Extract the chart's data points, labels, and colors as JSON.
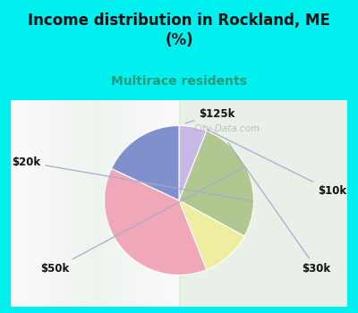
{
  "title": "Income distribution in Rockland, ME\n(%)",
  "subtitle": "Multirace residents",
  "slices": [
    {
      "label": "$125k",
      "value": 6,
      "color": "#c8b8e8"
    },
    {
      "label": "$10k",
      "value": 27,
      "color": "#b0c890"
    },
    {
      "label": "$30k",
      "value": 11,
      "color": "#eeeea0"
    },
    {
      "label": "$50k",
      "value": 38,
      "color": "#f0a8b8"
    },
    {
      "label": "$20k",
      "value": 18,
      "color": "#8090cc"
    }
  ],
  "bg_color": "#00efef",
  "chart_bg_left": "#d0e8d0",
  "chart_bg_right": "#f8f8f8",
  "title_color": "#111111",
  "subtitle_color": "#2a9a7a",
  "label_color": "#111111",
  "line_color": "#aaaacc",
  "watermark": "City-Data.com",
  "startangle": 90
}
